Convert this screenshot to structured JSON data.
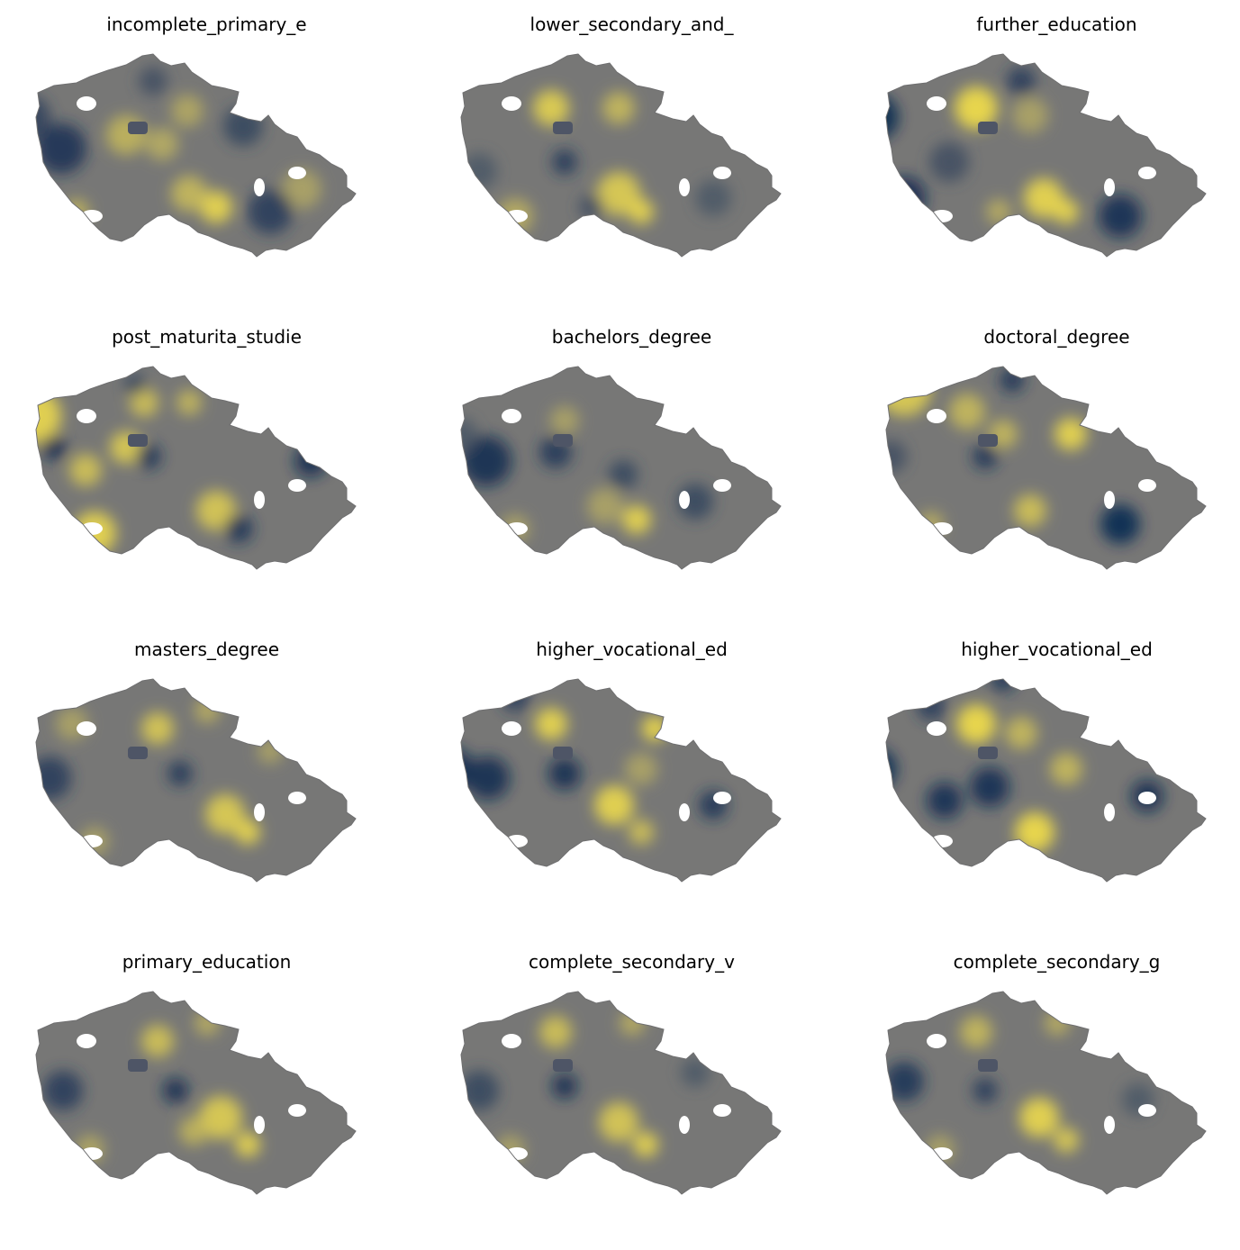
{
  "figure": {
    "colormap": "cividis",
    "colors": {
      "low": "#00204c",
      "mid": "#7c7b78",
      "high": "#ffe945",
      "background": "#ffffff"
    }
  },
  "panels": [
    {
      "title": "incomplete_primary_e",
      "blobs": [
        {
          "cx": 68,
          "cy": 125,
          "r": 28,
          "v": 0.08
        },
        {
          "cx": 32,
          "cy": 90,
          "r": 24,
          "v": 0.18
        },
        {
          "cx": 140,
          "cy": 110,
          "r": 22,
          "v": 0.78
        },
        {
          "cx": 180,
          "cy": 120,
          "r": 18,
          "v": 0.74
        },
        {
          "cx": 208,
          "cy": 83,
          "r": 18,
          "v": 0.72
        },
        {
          "cx": 270,
          "cy": 100,
          "r": 22,
          "v": 0.2
        },
        {
          "cx": 240,
          "cy": 190,
          "r": 18,
          "v": 0.95
        },
        {
          "cx": 210,
          "cy": 175,
          "r": 20,
          "v": 0.8
        },
        {
          "cx": 335,
          "cy": 170,
          "r": 22,
          "v": 0.7
        },
        {
          "cx": 300,
          "cy": 195,
          "r": 25,
          "v": 0.15
        },
        {
          "cx": 170,
          "cy": 50,
          "r": 16,
          "v": 0.25
        },
        {
          "cx": 85,
          "cy": 195,
          "r": 14,
          "v": 0.78
        }
      ]
    },
    {
      "title": "lower_secondary_and_",
      "blobs": [
        {
          "cx": 140,
          "cy": 80,
          "r": 20,
          "v": 0.92
        },
        {
          "cx": 215,
          "cy": 80,
          "r": 18,
          "v": 0.8
        },
        {
          "cx": 155,
          "cy": 140,
          "r": 14,
          "v": 0.12
        },
        {
          "cx": 215,
          "cy": 175,
          "r": 24,
          "v": 0.9
        },
        {
          "cx": 240,
          "cy": 195,
          "r": 14,
          "v": 0.95
        },
        {
          "cx": 100,
          "cy": 200,
          "r": 20,
          "v": 0.75
        },
        {
          "cx": 60,
          "cy": 150,
          "r": 20,
          "v": 0.3
        },
        {
          "cx": 185,
          "cy": 190,
          "r": 14,
          "v": 0.25
        },
        {
          "cx": 320,
          "cy": 180,
          "r": 20,
          "v": 0.3
        }
      ]
    },
    {
      "title": "further_education",
      "blobs": [
        {
          "cx": 28,
          "cy": 90,
          "r": 26,
          "v": 0.02
        },
        {
          "cx": 60,
          "cy": 180,
          "r": 24,
          "v": 0.04
        },
        {
          "cx": 140,
          "cy": 80,
          "r": 24,
          "v": 0.98
        },
        {
          "cx": 200,
          "cy": 88,
          "r": 20,
          "v": 0.7
        },
        {
          "cx": 215,
          "cy": 180,
          "r": 22,
          "v": 0.95
        },
        {
          "cx": 240,
          "cy": 195,
          "r": 14,
          "v": 0.95
        },
        {
          "cx": 300,
          "cy": 200,
          "r": 24,
          "v": 0.06
        },
        {
          "cx": 190,
          "cy": 50,
          "r": 16,
          "v": 0.15
        },
        {
          "cx": 110,
          "cy": 140,
          "r": 22,
          "v": 0.25
        },
        {
          "cx": 165,
          "cy": 195,
          "r": 14,
          "v": 0.75
        }
      ]
    },
    {
      "title": "post_maturita_studie",
      "blobs": [
        {
          "cx": 38,
          "cy": 75,
          "r": 30,
          "v": 0.95
        },
        {
          "cx": 105,
          "cy": 205,
          "r": 24,
          "v": 0.95
        },
        {
          "cx": 140,
          "cy": 110,
          "r": 18,
          "v": 0.9
        },
        {
          "cx": 160,
          "cy": 60,
          "r": 16,
          "v": 0.85
        },
        {
          "cx": 210,
          "cy": 60,
          "r": 14,
          "v": 0.8
        },
        {
          "cx": 240,
          "cy": 180,
          "r": 22,
          "v": 0.88
        },
        {
          "cx": 95,
          "cy": 135,
          "r": 18,
          "v": 0.85
        },
        {
          "cx": 60,
          "cy": 110,
          "r": 14,
          "v": 0.05
        },
        {
          "cx": 165,
          "cy": 120,
          "r": 14,
          "v": 0.1
        },
        {
          "cx": 265,
          "cy": 200,
          "r": 16,
          "v": 0.1
        },
        {
          "cx": 345,
          "cy": 125,
          "r": 18,
          "v": 0.05
        },
        {
          "cx": 150,
          "cy": 40,
          "r": 12,
          "v": 0.2
        }
      ]
    },
    {
      "title": "bachelors_degree",
      "blobs": [
        {
          "cx": 68,
          "cy": 125,
          "r": 28,
          "v": 0.05
        },
        {
          "cx": 145,
          "cy": 115,
          "r": 18,
          "v": 0.12
        },
        {
          "cx": 155,
          "cy": 80,
          "r": 16,
          "v": 0.7
        },
        {
          "cx": 235,
          "cy": 190,
          "r": 16,
          "v": 0.95
        },
        {
          "cx": 200,
          "cy": 175,
          "r": 20,
          "v": 0.7
        },
        {
          "cx": 100,
          "cy": 200,
          "r": 16,
          "v": 0.7
        },
        {
          "cx": 300,
          "cy": 170,
          "r": 20,
          "v": 0.2
        },
        {
          "cx": 40,
          "cy": 95,
          "r": 18,
          "v": 0.3
        },
        {
          "cx": 220,
          "cy": 140,
          "r": 16,
          "v": 0.2
        }
      ]
    },
    {
      "title": "doctoral_degree",
      "blobs": [
        {
          "cx": 60,
          "cy": 45,
          "r": 30,
          "v": 0.9
        },
        {
          "cx": 130,
          "cy": 70,
          "r": 20,
          "v": 0.8
        },
        {
          "cx": 170,
          "cy": 95,
          "r": 16,
          "v": 0.8
        },
        {
          "cx": 245,
          "cy": 95,
          "r": 18,
          "v": 0.95
        },
        {
          "cx": 200,
          "cy": 180,
          "r": 18,
          "v": 0.85
        },
        {
          "cx": 300,
          "cy": 195,
          "r": 22,
          "v": 0.03
        },
        {
          "cx": 150,
          "cy": 120,
          "r": 14,
          "v": 0.1
        },
        {
          "cx": 180,
          "cy": 35,
          "r": 14,
          "v": 0.1
        },
        {
          "cx": 45,
          "cy": 120,
          "r": 18,
          "v": 0.25
        },
        {
          "cx": 90,
          "cy": 195,
          "r": 14,
          "v": 0.75
        }
      ]
    },
    {
      "title": "masters_degree",
      "blobs": [
        {
          "cx": 175,
          "cy": 75,
          "r": 18,
          "v": 0.88
        },
        {
          "cx": 250,
          "cy": 170,
          "r": 22,
          "v": 0.9
        },
        {
          "cx": 275,
          "cy": 190,
          "r": 14,
          "v": 0.95
        },
        {
          "cx": 55,
          "cy": 130,
          "r": 24,
          "v": 0.15
        },
        {
          "cx": 200,
          "cy": 125,
          "r": 14,
          "v": 0.12
        },
        {
          "cx": 105,
          "cy": 200,
          "r": 16,
          "v": 0.7
        },
        {
          "cx": 80,
          "cy": 70,
          "r": 18,
          "v": 0.7
        },
        {
          "cx": 230,
          "cy": 55,
          "r": 14,
          "v": 0.75
        },
        {
          "cx": 300,
          "cy": 100,
          "r": 14,
          "v": 0.7
        }
      ]
    },
    {
      "title": "higher_vocational_ed",
      "blobs": [
        {
          "cx": 30,
          "cy": 120,
          "r": 24,
          "v": 0.05
        },
        {
          "cx": 70,
          "cy": 130,
          "r": 24,
          "v": 0.05
        },
        {
          "cx": 155,
          "cy": 125,
          "r": 18,
          "v": 0.05
        },
        {
          "cx": 140,
          "cy": 70,
          "r": 18,
          "v": 0.95
        },
        {
          "cx": 255,
          "cy": 75,
          "r": 14,
          "v": 0.98
        },
        {
          "cx": 210,
          "cy": 160,
          "r": 22,
          "v": 0.95
        },
        {
          "cx": 240,
          "cy": 190,
          "r": 14,
          "v": 0.85
        },
        {
          "cx": 240,
          "cy": 120,
          "r": 18,
          "v": 0.7
        },
        {
          "cx": 320,
          "cy": 160,
          "r": 16,
          "v": 0.1
        },
        {
          "cx": 100,
          "cy": 40,
          "r": 16,
          "v": 0.15
        }
      ]
    },
    {
      "title": "higher_vocational_ed",
      "blobs": [
        {
          "cx": 28,
          "cy": 120,
          "r": 24,
          "v": 0.03
        },
        {
          "cx": 140,
          "cy": 70,
          "r": 22,
          "v": 0.98
        },
        {
          "cx": 190,
          "cy": 80,
          "r": 18,
          "v": 0.8
        },
        {
          "cx": 240,
          "cy": 120,
          "r": 18,
          "v": 0.8
        },
        {
          "cx": 205,
          "cy": 190,
          "r": 22,
          "v": 0.98
        },
        {
          "cx": 105,
          "cy": 155,
          "r": 20,
          "v": 0.06
        },
        {
          "cx": 155,
          "cy": 140,
          "r": 22,
          "v": 0.06
        },
        {
          "cx": 330,
          "cy": 150,
          "r": 18,
          "v": 0.05
        },
        {
          "cx": 170,
          "cy": 20,
          "r": 14,
          "v": 0.1
        },
        {
          "cx": 90,
          "cy": 50,
          "r": 16,
          "v": 0.15
        }
      ]
    },
    {
      "title": "primary_education",
      "blobs": [
        {
          "cx": 175,
          "cy": 75,
          "r": 18,
          "v": 0.85
        },
        {
          "cx": 245,
          "cy": 160,
          "r": 24,
          "v": 0.9
        },
        {
          "cx": 275,
          "cy": 190,
          "r": 14,
          "v": 0.95
        },
        {
          "cx": 195,
          "cy": 130,
          "r": 14,
          "v": 0.05
        },
        {
          "cx": 70,
          "cy": 130,
          "r": 22,
          "v": 0.15
        },
        {
          "cx": 100,
          "cy": 195,
          "r": 16,
          "v": 0.72
        },
        {
          "cx": 215,
          "cy": 175,
          "r": 16,
          "v": 0.78
        },
        {
          "cx": 230,
          "cy": 55,
          "r": 14,
          "v": 0.75
        }
      ]
    },
    {
      "title": "complete_secondary_v",
      "blobs": [
        {
          "cx": 145,
          "cy": 65,
          "r": 18,
          "v": 0.85
        },
        {
          "cx": 215,
          "cy": 165,
          "r": 22,
          "v": 0.88
        },
        {
          "cx": 245,
          "cy": 190,
          "r": 14,
          "v": 0.95
        },
        {
          "cx": 155,
          "cy": 125,
          "r": 14,
          "v": 0.05
        },
        {
          "cx": 60,
          "cy": 130,
          "r": 22,
          "v": 0.2
        },
        {
          "cx": 95,
          "cy": 195,
          "r": 16,
          "v": 0.7
        },
        {
          "cx": 230,
          "cy": 55,
          "r": 14,
          "v": 0.75
        },
        {
          "cx": 300,
          "cy": 110,
          "r": 16,
          "v": 0.3
        }
      ]
    },
    {
      "title": "complete_secondary_g",
      "blobs": [
        {
          "cx": 140,
          "cy": 65,
          "r": 18,
          "v": 0.8
        },
        {
          "cx": 210,
          "cy": 160,
          "r": 22,
          "v": 0.95
        },
        {
          "cx": 240,
          "cy": 185,
          "r": 14,
          "v": 0.9
        },
        {
          "cx": 60,
          "cy": 120,
          "r": 22,
          "v": 0.1
        },
        {
          "cx": 150,
          "cy": 130,
          "r": 14,
          "v": 0.15
        },
        {
          "cx": 100,
          "cy": 195,
          "r": 16,
          "v": 0.7
        },
        {
          "cx": 230,
          "cy": 55,
          "r": 14,
          "v": 0.75
        },
        {
          "cx": 320,
          "cy": 140,
          "r": 18,
          "v": 0.3
        }
      ]
    }
  ]
}
